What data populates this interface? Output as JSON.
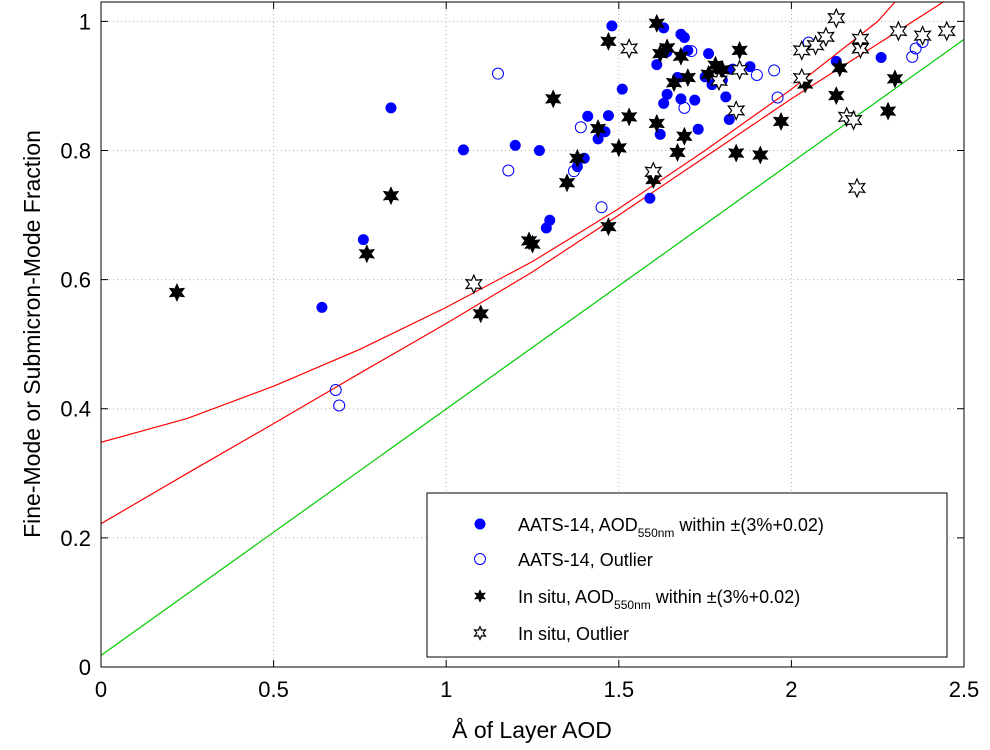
{
  "chart_data": {
    "type": "scatter",
    "xlabel": "Å of Layer AOD",
    "ylabel": "Fine-Mode or Submicron-Mode Fraction",
    "xlim": [
      0,
      2.5
    ],
    "ylim": [
      0,
      1.03
    ],
    "xticks": [
      "0",
      "0.5",
      "1",
      "1.5",
      "2",
      "2.5"
    ],
    "yticks": [
      "0",
      "0.2",
      "0.4",
      "0.6",
      "0.8",
      "1"
    ],
    "grid": true,
    "legend_position": "bottom-right",
    "legend": [
      {
        "key": "aats_within",
        "prefix": "AATS-14, AOD",
        "sub": "550nm",
        "suffix": " within ±(3%+0.02)"
      },
      {
        "key": "aats_outlier",
        "prefix": "AATS-14, Outlier",
        "sub": "",
        "suffix": ""
      },
      {
        "key": "insitu_within",
        "prefix": "In situ, AOD",
        "sub": "550nm",
        "suffix": " within ±(3%+0.02)"
      },
      {
        "key": "insitu_outlier",
        "prefix": "In situ, Outlier",
        "sub": "",
        "suffix": ""
      }
    ],
    "colors": {
      "aats": "#0000ff",
      "insitu": "#000000",
      "curve": "#ff0000",
      "line": "#00cc00"
    },
    "series": [
      {
        "key": "aats_within",
        "marker": "filled-circle",
        "points": [
          [
            0.64,
            0.557
          ],
          [
            0.76,
            0.662
          ],
          [
            0.84,
            0.866
          ],
          [
            1.05,
            0.801
          ],
          [
            1.2,
            0.808
          ],
          [
            1.27,
            0.8
          ],
          [
            1.29,
            0.68
          ],
          [
            1.3,
            0.692
          ],
          [
            1.38,
            0.775
          ],
          [
            1.4,
            0.788
          ],
          [
            1.41,
            0.853
          ],
          [
            1.44,
            0.818
          ],
          [
            1.46,
            0.829
          ],
          [
            1.47,
            0.854
          ],
          [
            1.48,
            0.993
          ],
          [
            1.51,
            0.895
          ],
          [
            1.59,
            0.726
          ],
          [
            1.61,
            0.933
          ],
          [
            1.62,
            0.825
          ],
          [
            1.63,
            0.873
          ],
          [
            1.63,
            0.99
          ],
          [
            1.64,
            0.953
          ],
          [
            1.64,
            0.887
          ],
          [
            1.67,
            0.913
          ],
          [
            1.68,
            0.88
          ],
          [
            1.68,
            0.98
          ],
          [
            1.69,
            0.975
          ],
          [
            1.7,
            0.955
          ],
          [
            1.72,
            0.878
          ],
          [
            1.73,
            0.833
          ],
          [
            1.75,
            0.914
          ],
          [
            1.76,
            0.95
          ],
          [
            1.77,
            0.902
          ],
          [
            1.8,
            0.909
          ],
          [
            1.81,
            0.883
          ],
          [
            1.82,
            0.848
          ],
          [
            1.83,
            0.926
          ],
          [
            1.88,
            0.93
          ],
          [
            2.13,
            0.938
          ],
          [
            2.26,
            0.944
          ]
        ]
      },
      {
        "key": "aats_outlier",
        "marker": "open-circle",
        "points": [
          [
            0.68,
            0.429
          ],
          [
            0.69,
            0.405
          ],
          [
            1.15,
            0.919
          ],
          [
            1.18,
            0.769
          ],
          [
            1.37,
            0.768
          ],
          [
            1.39,
            0.836
          ],
          [
            1.45,
            0.712
          ],
          [
            1.69,
            0.866
          ],
          [
            1.71,
            0.954
          ],
          [
            1.9,
            0.917
          ],
          [
            1.95,
            0.924
          ],
          [
            1.96,
            0.882
          ],
          [
            2.05,
            0.967
          ],
          [
            2.35,
            0.945
          ],
          [
            2.36,
            0.958
          ],
          [
            2.38,
            0.968
          ]
        ]
      },
      {
        "key": "insitu_within",
        "marker": "filled-star",
        "points": [
          [
            0.22,
            0.58
          ],
          [
            0.77,
            0.64
          ],
          [
            0.84,
            0.73
          ],
          [
            1.1,
            0.547
          ],
          [
            1.24,
            0.66
          ],
          [
            1.25,
            0.655
          ],
          [
            1.31,
            0.88
          ],
          [
            1.35,
            0.75
          ],
          [
            1.38,
            0.788
          ],
          [
            1.44,
            0.834
          ],
          [
            1.47,
            0.682
          ],
          [
            1.47,
            0.969
          ],
          [
            1.5,
            0.804
          ],
          [
            1.53,
            0.852
          ],
          [
            1.6,
            0.755
          ],
          [
            1.61,
            0.842
          ],
          [
            1.61,
            0.997
          ],
          [
            1.62,
            0.95
          ],
          [
            1.64,
            0.959
          ],
          [
            1.66,
            0.905
          ],
          [
            1.67,
            0.797
          ],
          [
            1.68,
            0.946
          ],
          [
            1.69,
            0.822
          ],
          [
            1.7,
            0.913
          ],
          [
            1.76,
            0.918
          ],
          [
            1.78,
            0.932
          ],
          [
            1.8,
            0.925
          ],
          [
            1.84,
            0.796
          ],
          [
            1.85,
            0.955
          ],
          [
            1.91,
            0.793
          ],
          [
            1.97,
            0.845
          ],
          [
            2.04,
            0.903
          ],
          [
            2.13,
            0.885
          ],
          [
            2.14,
            0.928
          ],
          [
            2.2,
            0.96
          ],
          [
            2.28,
            0.861
          ],
          [
            2.3,
            0.911
          ]
        ]
      },
      {
        "key": "insitu_outlier",
        "marker": "open-star",
        "points": [
          [
            1.08,
            0.593
          ],
          [
            1.6,
            0.767
          ],
          [
            1.53,
            0.958
          ],
          [
            1.79,
            0.908
          ],
          [
            1.84,
            0.862
          ],
          [
            1.85,
            0.925
          ],
          [
            2.03,
            0.912
          ],
          [
            2.03,
            0.955
          ],
          [
            2.07,
            0.963
          ],
          [
            2.1,
            0.976
          ],
          [
            2.13,
            1.005
          ],
          [
            2.16,
            0.852
          ],
          [
            2.18,
            0.847
          ],
          [
            2.19,
            0.742
          ],
          [
            2.2,
            0.958
          ],
          [
            2.2,
            0.973
          ],
          [
            2.31,
            0.985
          ],
          [
            2.38,
            0.978
          ],
          [
            2.45,
            0.985
          ]
        ]
      }
    ],
    "curves": [
      {
        "color": "red",
        "points": [
          [
            0,
            0.348
          ],
          [
            0.25,
            0.385
          ],
          [
            0.5,
            0.435
          ],
          [
            0.75,
            0.492
          ],
          [
            1,
            0.557
          ],
          [
            1.25,
            0.628
          ],
          [
            1.5,
            0.71
          ],
          [
            1.75,
            0.8
          ],
          [
            2,
            0.895
          ],
          [
            2.25,
            1.0
          ],
          [
            2.3,
            1.03
          ]
        ]
      },
      {
        "color": "red",
        "points": [
          [
            0,
            0.222
          ],
          [
            0.25,
            0.3
          ],
          [
            0.5,
            0.377
          ],
          [
            0.75,
            0.455
          ],
          [
            1,
            0.532
          ],
          [
            1.25,
            0.612
          ],
          [
            1.5,
            0.7
          ],
          [
            1.75,
            0.79
          ],
          [
            2,
            0.88
          ],
          [
            2.25,
            0.965
          ],
          [
            2.44,
            1.03
          ]
        ]
      },
      {
        "color": "green",
        "points": [
          [
            0,
            0.018
          ],
          [
            2.5,
            0.972
          ]
        ]
      }
    ]
  }
}
